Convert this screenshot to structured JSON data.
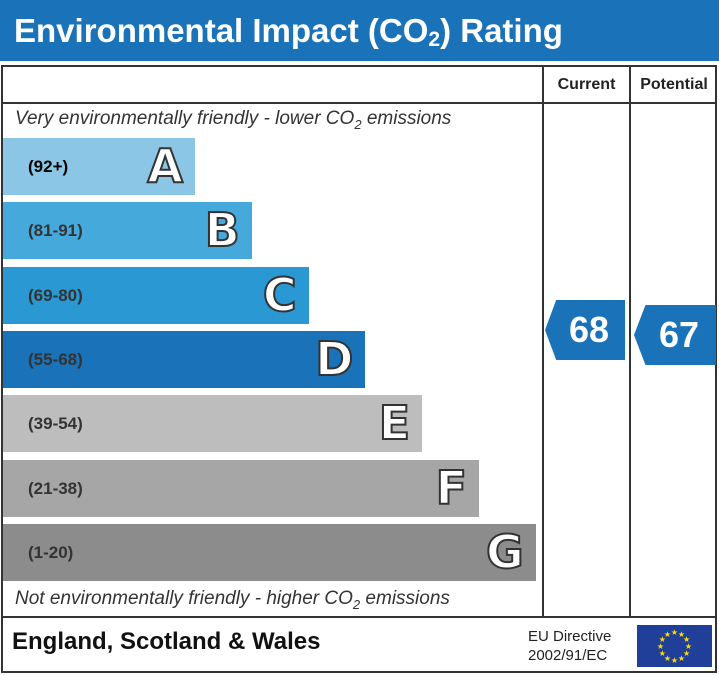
{
  "title": {
    "main": "Environmental Impact (CO",
    "sub": "2",
    "end": ") Rating"
  },
  "columns": {
    "current": "Current",
    "potential": "Potential"
  },
  "top_note": {
    "pre": "Very environmentally friendly - lower CO",
    "sub": "2",
    "post": " emissions"
  },
  "bottom_note": {
    "pre": "Not environmentally friendly - higher CO",
    "sub": "2",
    "post": " emissions"
  },
  "footer": {
    "region": "England, Scotland & Wales",
    "directive_line1": "EU Directive",
    "directive_line2": "2002/91/EC"
  },
  "chart_data": {
    "type": "bar",
    "categories": [
      "A",
      "B",
      "C",
      "D",
      "E",
      "F",
      "G"
    ],
    "ranges": [
      "(92+)",
      "(81-91)",
      "(69-80)",
      "(55-68)",
      "(39-54)",
      "(21-38)",
      "(1-20)"
    ],
    "colors": [
      "#8cc6e6",
      "#45a9dc",
      "#2a98d3",
      "#1a72b8",
      "#bdbdbd",
      "#a6a6a6",
      "#8c8c8c"
    ],
    "current": 68,
    "potential": 67,
    "arrow_color": "#1a72b8"
  }
}
